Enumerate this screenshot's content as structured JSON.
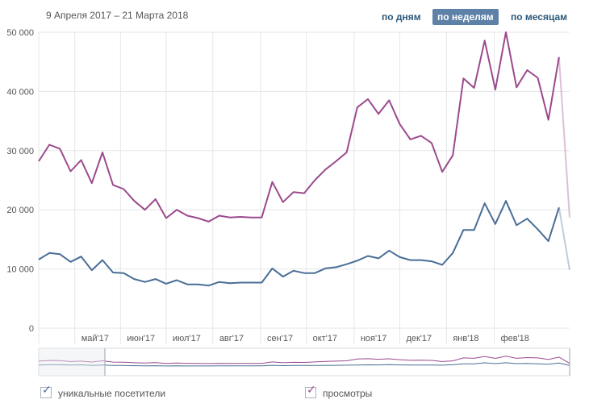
{
  "date_range": "9 Апреля 2017 – 21 Марта 2018",
  "period_buttons": [
    {
      "label": "по дням",
      "active": false
    },
    {
      "label": "по неделям",
      "active": true
    },
    {
      "label": "по месяцам",
      "active": false
    }
  ],
  "legend": {
    "unique_label": "уникальные посетители",
    "views_label": "просмотры",
    "unique_checked": true,
    "views_checked": true,
    "checkmark": "✓"
  },
  "colors": {
    "unique": "#4a6e96",
    "views": "#9b4a8d",
    "grid": "#e4e6e9",
    "axis_text": "#555555",
    "active_button": "#5e81a8"
  },
  "chart_data": {
    "type": "line",
    "title": "",
    "xlabel": "",
    "ylabel": "",
    "ylim": [
      0,
      50000
    ],
    "y_ticks": [
      0,
      10000,
      20000,
      30000,
      40000,
      50000
    ],
    "y_tick_labels": [
      "0",
      "10 000",
      "20 000",
      "30 000",
      "40 000",
      "50 000"
    ],
    "x_ticks": [
      {
        "label": "май'17",
        "week": 3.4
      },
      {
        "label": "июн'17",
        "week": 7.7
      },
      {
        "label": "июл'17",
        "week": 12.0
      },
      {
        "label": "авг'17",
        "week": 16.4
      },
      {
        "label": "сен'17",
        "week": 20.9
      },
      {
        "label": "окт'17",
        "week": 25.2
      },
      {
        "label": "ноя'17",
        "week": 29.7
      },
      {
        "label": "дек'17",
        "week": 34.0
      },
      {
        "label": "янв'18",
        "week": 38.4
      },
      {
        "label": "фев'18",
        "week": 42.9
      }
    ],
    "x_max": 49.0,
    "series": [
      {
        "name": "просмотры",
        "values": [
          28200,
          31000,
          30300,
          26500,
          28400,
          24500,
          29700,
          24200,
          23500,
          21500,
          20000,
          21800,
          18600,
          20000,
          19000,
          18600,
          18000,
          19000,
          18700,
          18800,
          18700,
          18700,
          24700,
          21300,
          23000,
          22800,
          25000,
          26800,
          28200,
          29700,
          37300,
          38700,
          36200,
          38500,
          34500,
          31900,
          32500,
          31300,
          26400,
          29200,
          42200,
          40600,
          48600,
          40300,
          50000,
          40700,
          43600,
          42300,
          35200,
          45800,
          18700
        ]
      },
      {
        "name": "уникальные посетители",
        "values": [
          11600,
          12700,
          12500,
          11200,
          12100,
          9800,
          11500,
          9400,
          9300,
          8300,
          7800,
          8300,
          7500,
          8100,
          7400,
          7400,
          7200,
          7800,
          7600,
          7700,
          7700,
          7700,
          10100,
          8700,
          9700,
          9300,
          9300,
          10100,
          10300,
          10800,
          11400,
          12200,
          11800,
          13100,
          12000,
          11500,
          11500,
          11300,
          10700,
          12700,
          16600,
          16600,
          21100,
          17600,
          21500,
          17400,
          18500,
          16700,
          14700,
          20400,
          9800
        ]
      }
    ]
  }
}
